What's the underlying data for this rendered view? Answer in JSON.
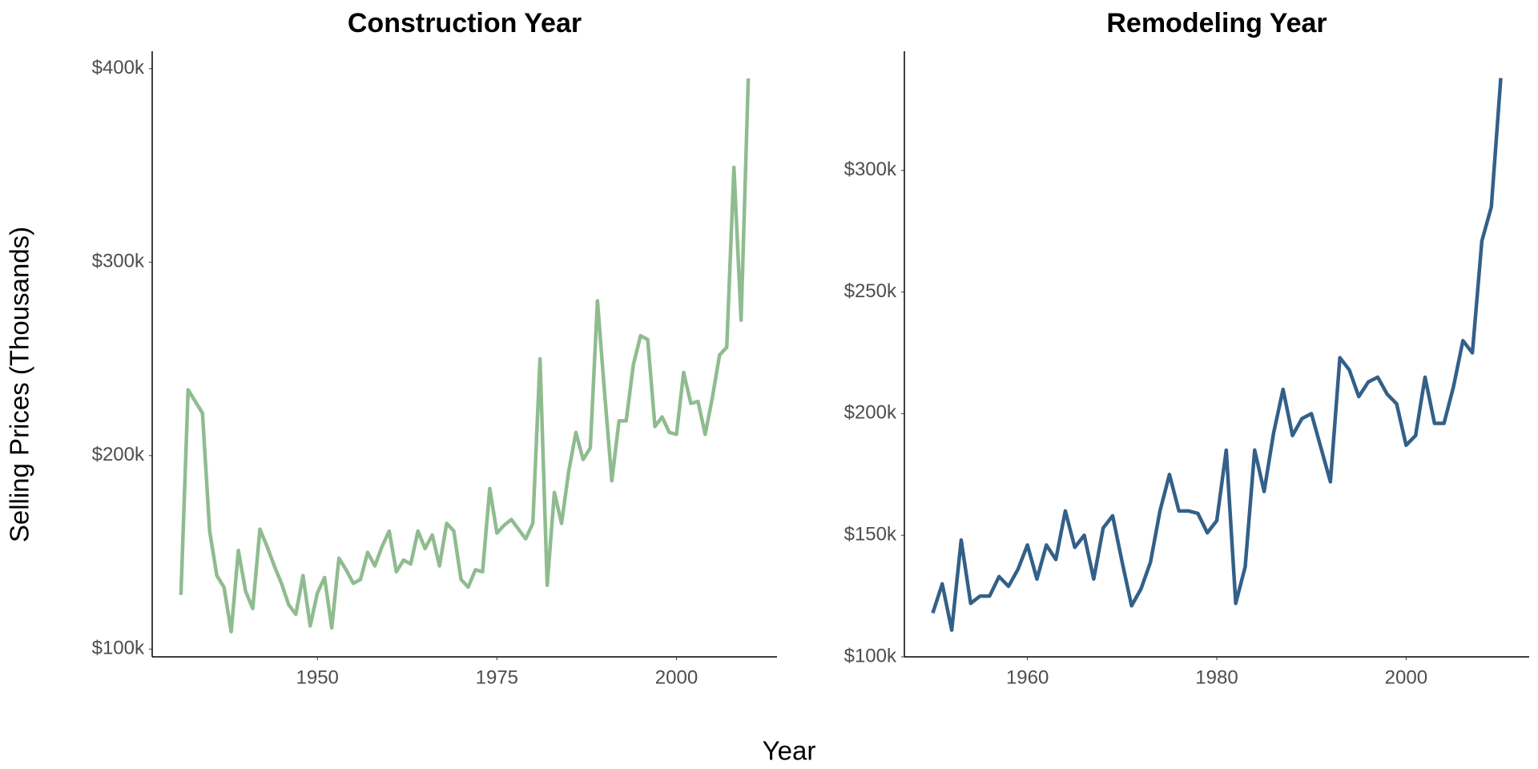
{
  "xlabel": "Year",
  "ylabel": "Selling Prices (Thousands)",
  "chart_data": [
    {
      "type": "line",
      "title": "Construction Year",
      "color": "#8fbc8f",
      "x": [
        1931,
        1932,
        1934,
        1935,
        1936,
        1937,
        1938,
        1939,
        1940,
        1941,
        1942,
        1943,
        1944,
        1945,
        1946,
        1947,
        1948,
        1949,
        1950,
        1951,
        1952,
        1953,
        1954,
        1955,
        1956,
        1957,
        1958,
        1959,
        1960,
        1961,
        1962,
        1963,
        1964,
        1965,
        1966,
        1967,
        1968,
        1969,
        1970,
        1971,
        1972,
        1973,
        1974,
        1975,
        1976,
        1977,
        1978,
        1979,
        1980,
        1981,
        1982,
        1983,
        1984,
        1985,
        1986,
        1987,
        1988,
        1989,
        1990,
        1991,
        1992,
        1993,
        1994,
        1995,
        1996,
        1997,
        1998,
        1999,
        2000,
        2001,
        2002,
        2003,
        2004,
        2005,
        2006,
        2007,
        2008,
        2009,
        2010
      ],
      "values": [
        128,
        234,
        222,
        161,
        138,
        132,
        109,
        151,
        130,
        121,
        162,
        153,
        143,
        134,
        123,
        118,
        138,
        112,
        129,
        137,
        111,
        147,
        141,
        134,
        136,
        150,
        143,
        153,
        161,
        140,
        146,
        144,
        161,
        152,
        159,
        143,
        165,
        161,
        136,
        132,
        141,
        140,
        183,
        160,
        164,
        167,
        162,
        157,
        165,
        250,
        133,
        181,
        165,
        192,
        212,
        198,
        204,
        280,
        232,
        187,
        218,
        218,
        247,
        262,
        260,
        215,
        220,
        212,
        211,
        243,
        227,
        228,
        211,
        230,
        252,
        256,
        349,
        270,
        395
      ],
      "xlim": [
        1927,
        2014
      ],
      "ylim": [
        96,
        409
      ],
      "xticks": [
        1950,
        1975,
        2000
      ],
      "yticks": [
        {
          "value": 100,
          "label": "$100k"
        },
        {
          "value": 200,
          "label": "$200k"
        },
        {
          "value": 300,
          "label": "$300k"
        },
        {
          "value": 400,
          "label": "$400k"
        }
      ],
      "grid": false
    },
    {
      "type": "line",
      "title": "Remodeling Year",
      "color": "#336088",
      "x": [
        1950,
        1951,
        1952,
        1953,
        1954,
        1955,
        1956,
        1957,
        1958,
        1959,
        1960,
        1961,
        1962,
        1963,
        1964,
        1965,
        1966,
        1967,
        1968,
        1969,
        1970,
        1971,
        1972,
        1973,
        1974,
        1975,
        1976,
        1977,
        1978,
        1979,
        1980,
        1981,
        1982,
        1983,
        1984,
        1985,
        1986,
        1987,
        1988,
        1989,
        1990,
        1991,
        1992,
        1993,
        1994,
        1995,
        1996,
        1997,
        1998,
        1999,
        2000,
        2001,
        2002,
        2003,
        2004,
        2005,
        2006,
        2007,
        2008,
        2009,
        2010
      ],
      "values": [
        118,
        130,
        111,
        148,
        122,
        125,
        125,
        133,
        129,
        136,
        146,
        132,
        146,
        140,
        160,
        145,
        150,
        132,
        153,
        158,
        139,
        121,
        128,
        139,
        160,
        175,
        160,
        160,
        159,
        151,
        156,
        185,
        122,
        137,
        185,
        168,
        192,
        210,
        191,
        198,
        200,
        186,
        172,
        223,
        218,
        207,
        213,
        215,
        208,
        204,
        187,
        191,
        215,
        196,
        196,
        211,
        230,
        225,
        271,
        285,
        338
      ],
      "xlim": [
        1947,
        2013
      ],
      "ylim": [
        100,
        349
      ],
      "xticks": [
        1960,
        1980,
        2000
      ],
      "yticks": [
        {
          "value": 100,
          "label": "$100k"
        },
        {
          "value": 150,
          "label": "$150k"
        },
        {
          "value": 200,
          "label": "$200k"
        },
        {
          "value": 250,
          "label": "$250k"
        },
        {
          "value": 300,
          "label": "$300k"
        }
      ],
      "grid": false
    }
  ]
}
